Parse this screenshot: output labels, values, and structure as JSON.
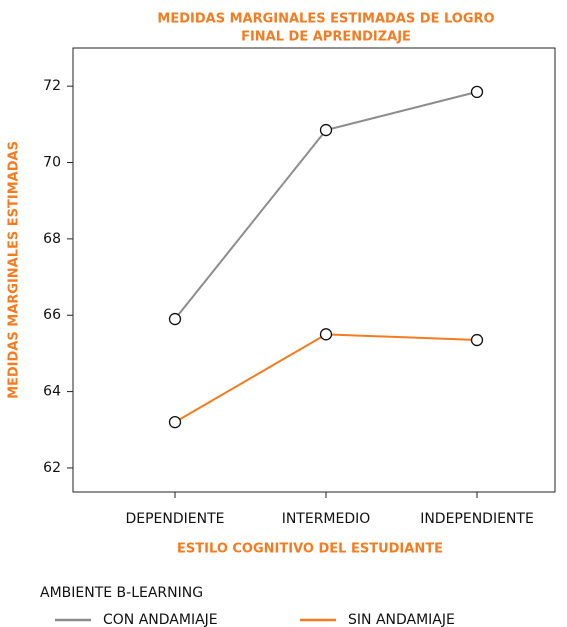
{
  "chart_data": {
    "type": "line",
    "title": [
      "MEDIDAS MARGINALES ESTIMADAS DE LOGRO",
      "FINAL DE APRENDIZAJE"
    ],
    "x_label": "ESTILO COGNITIVO DEL ESTUDIANTE",
    "y_label": "MEDIDAS MARGINALES ESTIMADAS",
    "legend_title": "AMBIENTE B-LEARNING",
    "categories": [
      "DEPENDIENTE",
      "INTERMEDIO",
      "INDEPENDIENTE"
    ],
    "series": [
      {
        "name": "CON ANDAMIAJE",
        "color": "#8c8c8c",
        "values": [
          65.9,
          70.85,
          71.85
        ]
      },
      {
        "name": "SIN ANDAMIAJE",
        "color": "#f47b20",
        "values": [
          63.2,
          65.5,
          65.35
        ]
      }
    ],
    "ylim": [
      61.37,
      73
    ],
    "yticks": [
      62,
      64,
      66,
      68,
      70,
      72
    ],
    "grid": false
  }
}
